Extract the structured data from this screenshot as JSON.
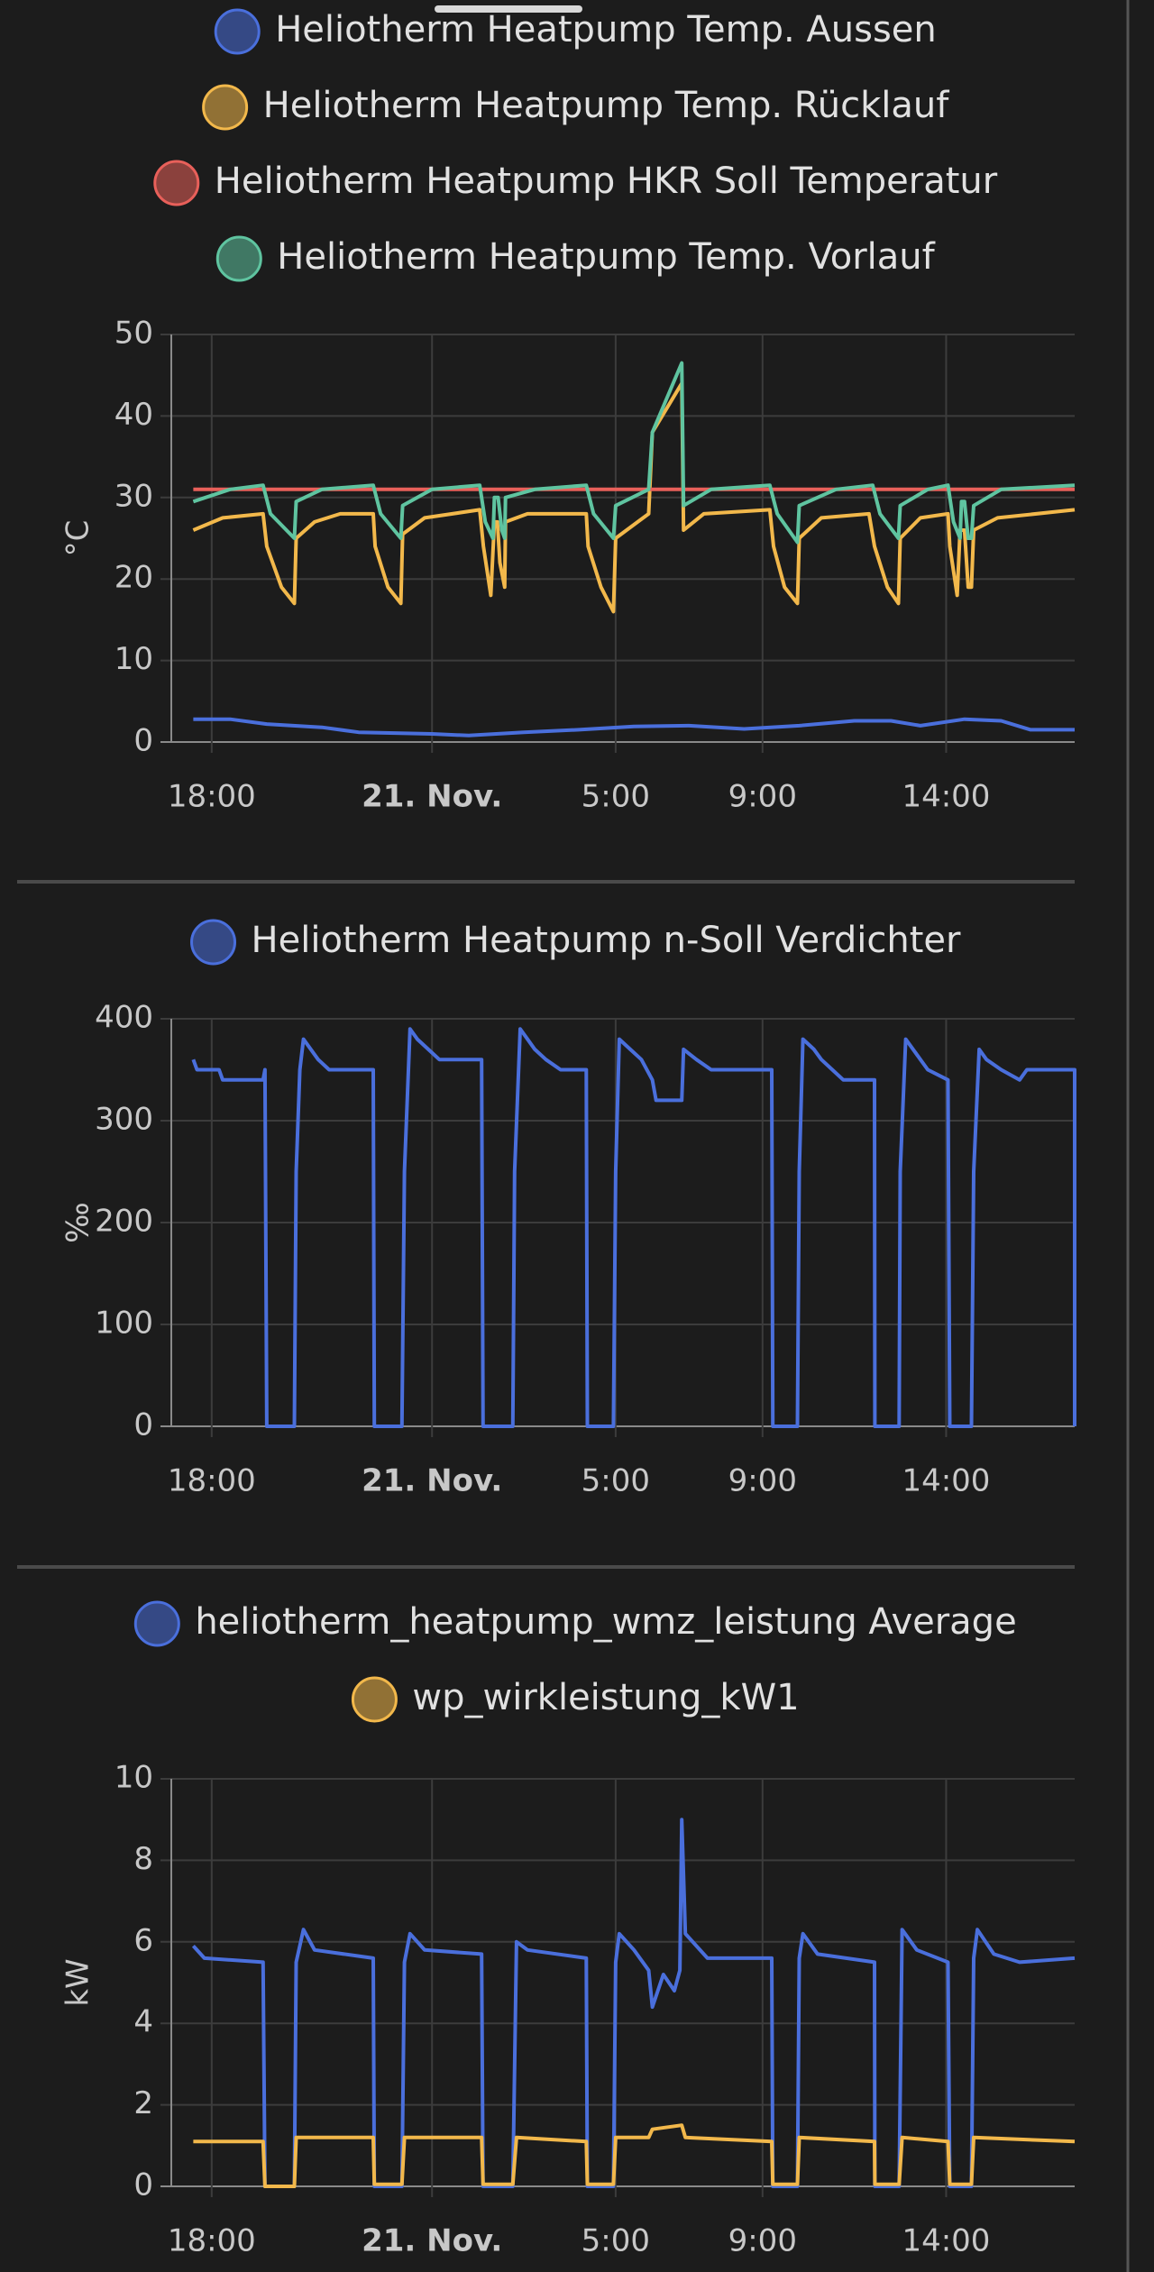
{
  "chart_data": [
    {
      "type": "line",
      "ylabel": "°C",
      "grid": true,
      "xlim": [
        16.9,
        41.5
      ],
      "ylim": [
        0,
        50
      ],
      "yticks": [
        0,
        10,
        20,
        30,
        40,
        50
      ],
      "xticks": [
        {
          "value": 18,
          "label": "18:00"
        },
        {
          "value": 24,
          "label": "21. Nov.",
          "bold": true
        },
        {
          "value": 29,
          "label": "5:00"
        },
        {
          "value": 33,
          "label": "9:00"
        },
        {
          "value": 38,
          "label": "14:00"
        }
      ],
      "series": [
        {
          "name": "Heliotherm Heatpump Temp. Aussen",
          "color": "#4a6fdc",
          "x": [
            17.5,
            18.5,
            19.5,
            21,
            22,
            24,
            25,
            26.5,
            28,
            29.5,
            31,
            32.5,
            34,
            35.5,
            36.5,
            37.3,
            38.5,
            39.5,
            40.3,
            41.5
          ],
          "values": [
            2.8,
            2.8,
            2.2,
            1.8,
            1.2,
            1.0,
            0.8,
            1.2,
            1.5,
            1.9,
            2.0,
            1.6,
            2.0,
            2.6,
            2.6,
            2.0,
            2.8,
            2.6,
            1.5,
            1.5
          ]
        },
        {
          "name": "Heliotherm Heatpump Temp. Rücklauf",
          "color": "#f2b84b",
          "x": [
            17.5,
            18.3,
            19.4,
            19.5,
            19.9,
            20.25,
            20.3,
            20.8,
            21.5,
            22.4,
            22.45,
            22.8,
            23.15,
            23.2,
            23.8,
            25.3,
            25.4,
            25.6,
            25.7,
            25.78,
            25.85,
            25.98,
            26.0,
            26.6,
            28.2,
            28.25,
            28.6,
            28.94,
            29.0,
            29.6,
            29.9,
            30.0,
            30.8,
            30.85,
            31.4,
            33.2,
            33.3,
            33.6,
            33.95,
            34.0,
            34.6,
            35.9,
            36.05,
            36.4,
            36.7,
            36.75,
            37.3,
            38.05,
            38.1,
            38.3,
            38.38,
            38.5,
            38.6,
            38.69,
            38.75,
            39.4,
            41.5
          ],
          "values": [
            26,
            27.5,
            28,
            24,
            19,
            17,
            25,
            27,
            28,
            28,
            24,
            19,
            17,
            25.5,
            27.5,
            28.5,
            24,
            18,
            27,
            27,
            22,
            19,
            27,
            28,
            28,
            24,
            19,
            16,
            25,
            27,
            28,
            38,
            44,
            26,
            28,
            28.5,
            24,
            19,
            17,
            25,
            27.5,
            28,
            24,
            19,
            17,
            25,
            27.5,
            28,
            24,
            18,
            26,
            26,
            19,
            19,
            26,
            27.5,
            28.5
          ]
        },
        {
          "name": "Heliotherm Heatpump HKR Soll Temperatur",
          "color": "#e8605a",
          "x": [
            17.5,
            30.0,
            41.5
          ],
          "values": [
            31,
            31,
            31
          ]
        },
        {
          "name": "Heliotherm Heatpump Temp. Vorlauf",
          "color": "#5fc4a0",
          "x": [
            17.5,
            18.5,
            19.4,
            19.6,
            20.25,
            20.3,
            21,
            22.4,
            22.6,
            23.15,
            23.2,
            24,
            25.3,
            25.45,
            25.66,
            25.7,
            25.8,
            25.9,
            25.98,
            26.0,
            26.8,
            28.2,
            28.4,
            28.94,
            29.0,
            29.9,
            30.0,
            30.8,
            30.85,
            31.6,
            33.2,
            33.4,
            33.95,
            34.0,
            35,
            36.0,
            36.2,
            36.7,
            36.75,
            37.5,
            38.05,
            38.2,
            38.38,
            38.42,
            38.5,
            38.6,
            38.69,
            38.75,
            39.5,
            41.5
          ],
          "values": [
            29.5,
            31,
            31.5,
            28,
            25,
            29.5,
            31,
            31.5,
            28,
            25,
            29,
            31,
            31.5,
            27,
            25,
            30,
            30,
            26,
            25,
            30,
            31,
            31.5,
            28,
            25,
            29,
            31,
            38,
            46.5,
            29,
            31,
            31.5,
            28,
            24.5,
            29,
            31,
            31.5,
            28,
            25,
            29,
            31,
            31.5,
            27,
            25,
            29.5,
            29.5,
            25,
            25,
            29,
            31,
            31.5
          ]
        }
      ]
    },
    {
      "type": "line",
      "ylabel": "‰",
      "grid": true,
      "xlim": [
        16.9,
        41.5
      ],
      "ylim": [
        0,
        400
      ],
      "yticks": [
        0,
        100,
        200,
        300,
        400
      ],
      "xticks": [
        {
          "value": 18,
          "label": "18:00"
        },
        {
          "value": 24,
          "label": "21. Nov.",
          "bold": true
        },
        {
          "value": 29,
          "label": "5:00"
        },
        {
          "value": 33,
          "label": "9:00"
        },
        {
          "value": 38,
          "label": "14:00"
        }
      ],
      "series": [
        {
          "name": "Heliotherm Heatpump n-Soll Verdichter",
          "color": "#4a6fdc",
          "x": [
            17.5,
            17.6,
            18.2,
            18.3,
            19.4,
            19.45,
            19.5,
            20.25,
            20.3,
            20.4,
            20.5,
            20.7,
            20.9,
            21.2,
            22.4,
            22.43,
            23.18,
            23.25,
            23.4,
            23.6,
            23.9,
            24.2,
            25.35,
            25.39,
            26.2,
            26.25,
            26.4,
            26.6,
            26.8,
            27.1,
            27.5,
            28.2,
            28.23,
            28.94,
            29.0,
            29.1,
            29.4,
            29.7,
            30.0,
            30.1,
            30.8,
            30.85,
            31.2,
            31.6,
            33.25,
            33.28,
            33.95,
            34.0,
            34.1,
            34.4,
            34.6,
            34.9,
            35.2,
            36.05,
            36.06,
            36.72,
            36.75,
            36.9,
            37.1,
            37.3,
            37.5,
            38.05,
            38.1,
            38.69,
            38.75,
            38.9,
            39.1,
            39.5,
            40,
            40.2,
            41.5,
            41.5
          ],
          "values": [
            360,
            350,
            350,
            340,
            340,
            350,
            0,
            0,
            250,
            350,
            380,
            370,
            360,
            350,
            350,
            0,
            0,
            250,
            390,
            380,
            370,
            360,
            360,
            0,
            0,
            250,
            390,
            380,
            370,
            360,
            350,
            350,
            0,
            0,
            250,
            380,
            370,
            360,
            340,
            320,
            320,
            370,
            360,
            350,
            350,
            0,
            0,
            250,
            380,
            370,
            360,
            350,
            340,
            340,
            0,
            0,
            250,
            380,
            370,
            360,
            350,
            340,
            0,
            0,
            250,
            370,
            360,
            350,
            340,
            350,
            350,
            0
          ]
        }
      ]
    },
    {
      "type": "line",
      "ylabel": "kW",
      "grid": true,
      "xlim": [
        16.9,
        41.5
      ],
      "ylim": [
        0,
        10
      ],
      "yticks": [
        0,
        2,
        4,
        6,
        8,
        10
      ],
      "xticks": [
        {
          "value": 18,
          "label": "18:00"
        },
        {
          "value": 24,
          "label": "21. Nov.",
          "bold": true
        },
        {
          "value": 29,
          "label": "5:00"
        },
        {
          "value": 33,
          "label": "9:00"
        },
        {
          "value": 38,
          "label": "14:00"
        }
      ],
      "series": [
        {
          "name": "heliotherm_heatpump_wmz_leistung Average",
          "color": "#4a6fdc",
          "x": [
            17.5,
            17.8,
            19.4,
            19.45,
            20.25,
            20.3,
            20.5,
            20.8,
            22.4,
            22.43,
            23.18,
            23.25,
            23.4,
            23.8,
            25.35,
            25.39,
            26.2,
            26.3,
            26.6,
            28.2,
            28.23,
            28.94,
            29.0,
            29.1,
            29.5,
            29.9,
            30.0,
            30.3,
            30.6,
            30.75,
            30.8,
            30.9,
            31.5,
            33.25,
            33.28,
            33.95,
            34.0,
            34.1,
            34.5,
            36.05,
            36.06,
            36.72,
            36.8,
            37.2,
            38.05,
            38.1,
            38.69,
            38.75,
            38.85,
            39.3,
            40,
            41.5
          ],
          "values": [
            5.9,
            5.6,
            5.5,
            0,
            0,
            5.5,
            6.3,
            5.8,
            5.6,
            0,
            0,
            5.5,
            6.2,
            5.8,
            5.7,
            0,
            0,
            6.0,
            5.8,
            5.6,
            0,
            0,
            5.5,
            6.2,
            5.8,
            5.3,
            4.4,
            5.2,
            4.8,
            5.3,
            9.0,
            6.2,
            5.6,
            5.6,
            0,
            0,
            5.6,
            6.2,
            5.7,
            5.5,
            0,
            0,
            6.3,
            5.8,
            5.5,
            0,
            0,
            5.6,
            6.3,
            5.7,
            5.5,
            5.6
          ]
        },
        {
          "name": "wp_wirkleistung_kW1",
          "color": "#f2b84b",
          "x": [
            17.5,
            19.4,
            19.45,
            20.25,
            20.3,
            22.4,
            22.43,
            23.18,
            23.25,
            25.35,
            25.39,
            26.2,
            26.3,
            28.2,
            28.23,
            28.94,
            29.0,
            29.9,
            30.0,
            30.8,
            30.9,
            33.25,
            33.28,
            33.95,
            34.0,
            36.05,
            36.06,
            36.72,
            36.8,
            38.05,
            38.1,
            38.69,
            38.75,
            41.5
          ],
          "values": [
            1.1,
            1.1,
            0,
            0,
            1.2,
            1.2,
            0.05,
            0.05,
            1.2,
            1.2,
            0.05,
            0.05,
            1.2,
            1.1,
            0.05,
            0.05,
            1.2,
            1.2,
            1.4,
            1.5,
            1.2,
            1.1,
            0.05,
            0.05,
            1.2,
            1.1,
            0.05,
            0.05,
            1.2,
            1.1,
            0.05,
            0.05,
            1.2,
            1.1
          ]
        }
      ]
    }
  ]
}
